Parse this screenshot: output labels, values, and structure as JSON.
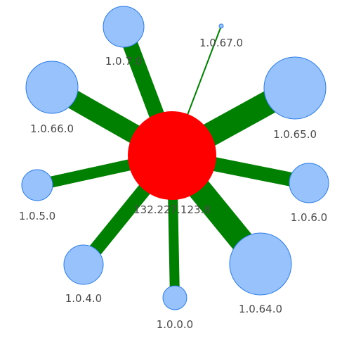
{
  "graph": {
    "colors": {
      "center_fill": "#ff0000",
      "leaf_fill": "#97c2fc",
      "leaf_stroke": "#2b7ce9",
      "edge": "#008000",
      "label": "#4a4a4a"
    },
    "center": {
      "id": "center",
      "label": "132.227.123.8"
    },
    "nodes": [
      {
        "id": "n-1-0-7-0",
        "label": "1.0.7.0"
      },
      {
        "id": "n-1-0-67-0",
        "label": "1.0.67.0"
      },
      {
        "id": "n-1-0-66-0",
        "label": "1.0.66.0"
      },
      {
        "id": "n-1-0-65-0",
        "label": "1.0.65.0"
      },
      {
        "id": "n-1-0-5-0",
        "label": "1.0.5.0"
      },
      {
        "id": "n-1-0-6-0",
        "label": "1.0.6.0"
      },
      {
        "id": "n-1-0-4-0",
        "label": "1.0.4.0"
      },
      {
        "id": "n-1-0-64-0",
        "label": "1.0.64.0"
      },
      {
        "id": "n-1-0-0-0",
        "label": "1.0.0.0"
      }
    ]
  }
}
